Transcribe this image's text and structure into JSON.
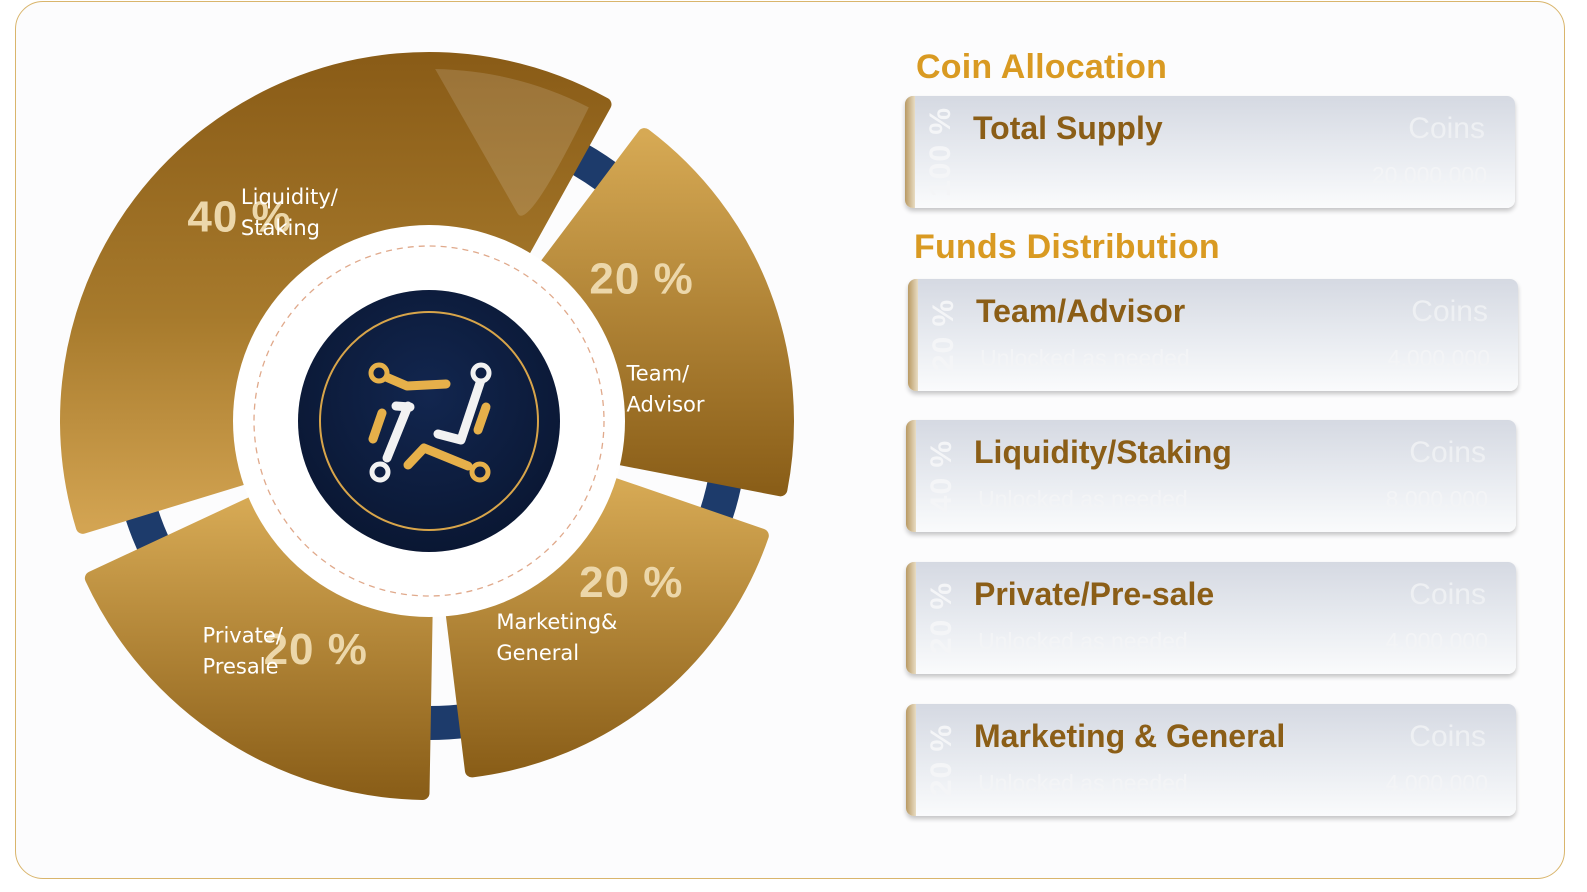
{
  "chart_data": {
    "type": "pie",
    "slices": [
      {
        "label": "Liquidity/ Staking",
        "percent_label": "40 %",
        "value": 40
      },
      {
        "label": "Team/ Advisor",
        "percent_label": "20 %",
        "value": 20
      },
      {
        "label": "Marketing& General",
        "percent_label": "20 %",
        "value": 20
      },
      {
        "label": "Private/ Presale",
        "percent_label": "20 %",
        "value": 20
      }
    ],
    "colors": {
      "gold_light": "#d4a652",
      "gold_dark": "#8a5f18",
      "navy": "#1c3a6b",
      "center_dark": "#0b1a3a",
      "accent_gold": "#e6b04a"
    }
  },
  "center_logo": {
    "icon": "circuit-logo-icon"
  },
  "coin_allocation": {
    "title": "Coin Allocation",
    "total_supply": {
      "percent": "100 %",
      "title": "Total Supply",
      "coins_label": "Coins",
      "amount": "20,000,000"
    }
  },
  "funds_distribution": {
    "title": "Funds Distribution",
    "items": [
      {
        "percent": "20 %",
        "title": "Team/Advisor",
        "subtitle": "Unlocked as needed",
        "coins_label": "Coins",
        "amount": "4,000,000"
      },
      {
        "percent": "40 %",
        "title": "Liquidity/Staking",
        "subtitle": "Unlocked as needed",
        "coins_label": "Coins",
        "amount": "8,000,000"
      },
      {
        "percent": "20 %",
        "title": "Private/Pre-sale",
        "subtitle": "Unlocked as needed",
        "coins_label": "Coins",
        "amount": "4,000,000"
      },
      {
        "percent": "20 %",
        "title": "Marketing & General",
        "subtitle": "Unlocked as needed",
        "coins_label": "Coins",
        "amount": "4,000,000"
      }
    ]
  }
}
